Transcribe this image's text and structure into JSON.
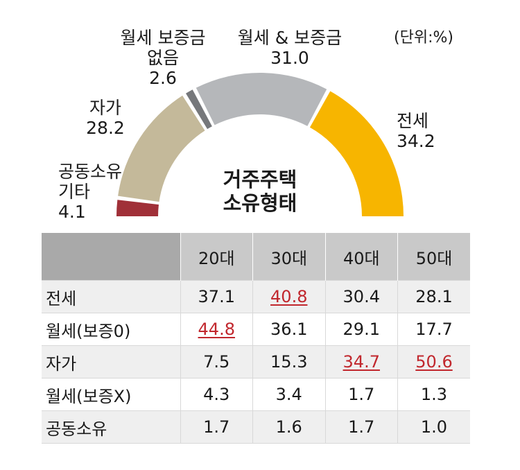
{
  "unit_label": "(단위:%)",
  "center_title": [
    "거주주택",
    "소유형태"
  ],
  "colors": {
    "jeonse": "#f7b500",
    "wolse_deposit": "#b5b7ba",
    "wolse_no_deposit": "#76787b",
    "owned": "#c4b99a",
    "shared": "#a03038",
    "highlight": "#c1272d"
  },
  "chart_data": [
    {
      "type": "pie",
      "categories": [
        "공동소유 기타",
        "자가",
        "월세 보증금 없음",
        "월세 & 보증금",
        "전세"
      ],
      "values": [
        4.1,
        28.2,
        2.6,
        31.0,
        34.2
      ],
      "labels": {
        "shared": [
          "공동소유",
          "기타",
          "4.1"
        ],
        "owned": [
          "자가",
          "28.2"
        ],
        "wolse_no_deposit": [
          "월세 보증금",
          "없음",
          "2.6"
        ],
        "wolse_deposit": [
          "월세 & 보증금",
          "31.0"
        ],
        "jeonse": [
          "전세",
          "34.2"
        ]
      }
    },
    {
      "type": "table",
      "columns": [
        "20대",
        "30대",
        "40대",
        "50대"
      ],
      "rows": [
        {
          "label": "전세",
          "values": [
            "37.1",
            "40.8",
            "30.4",
            "28.1"
          ],
          "highlight": 1
        },
        {
          "label": "월세(보증0)",
          "values": [
            "44.8",
            "36.1",
            "29.1",
            "17.7"
          ],
          "highlight": 0
        },
        {
          "label": "자가",
          "values": [
            "7.5",
            "15.3",
            "34.7",
            "50.6"
          ],
          "highlight": [
            2,
            3
          ]
        },
        {
          "label": "월세(보증X)",
          "values": [
            "4.3",
            "3.4",
            "1.7",
            "1.3"
          ]
        },
        {
          "label": "공동소유",
          "values": [
            "1.7",
            "1.6",
            "1.7",
            "1.0"
          ]
        }
      ]
    }
  ]
}
